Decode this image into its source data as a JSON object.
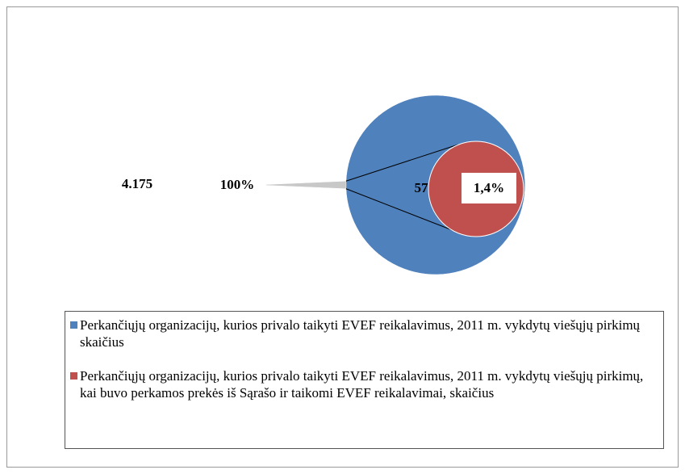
{
  "chart_data": {
    "type": "pie_of_pie",
    "series": [
      {
        "name": "Perkančiųjų organizacijų, kurios privalo taikyti EVEF reikalavimus, 2011 m. vykdytų viešųjų pirkimų skaičius",
        "color": "#4f81bd",
        "values": [
          4175
        ],
        "value_labels": [
          "4.175"
        ],
        "percent": [
          100
        ],
        "percent_labels": [
          "100%"
        ]
      },
      {
        "name": "Perkančiųjų organizacijų, kurios privalo taikyti EVEF reikalavimus, 2011 m. vykdytų viešųjų pirkimų, kai buvo perkamos prekės iš Sąrašo ir taikomi EVEF reikalavimai, skaičius",
        "color": "#c0504d",
        "values": [
          57
        ],
        "value_labels": [
          "57"
        ],
        "percent": [
          1.4
        ],
        "percent_labels": [
          "1,4%"
        ]
      }
    ]
  }
}
